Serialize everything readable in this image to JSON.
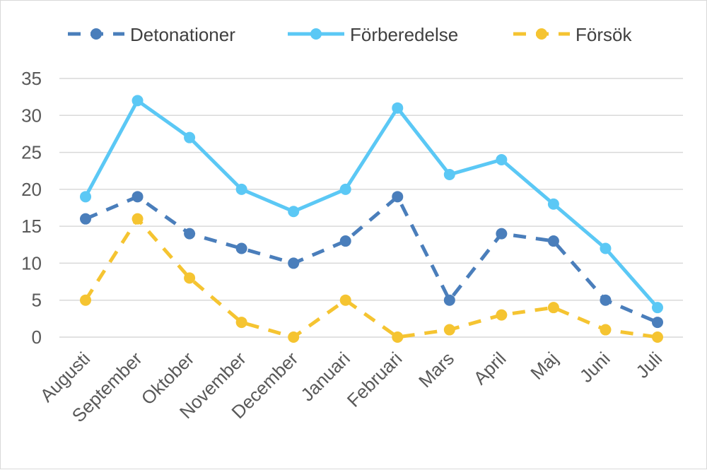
{
  "chart_data": {
    "type": "line",
    "title": "",
    "xlabel": "",
    "ylabel": "",
    "ylim": [
      0,
      35
    ],
    "yticks": [
      0,
      5,
      10,
      15,
      20,
      25,
      30,
      35
    ],
    "grid": true,
    "legend_position": "top",
    "categories": [
      "Augusti",
      "September",
      "Oktober",
      "November",
      "December",
      "Januari",
      "Februari",
      "Mars",
      "April",
      "Maj",
      "Juni",
      "Juli"
    ],
    "series": [
      {
        "name": "Detonationer",
        "color": "#4a7ebb",
        "dashed": true,
        "values": [
          16,
          19,
          14,
          12,
          10,
          13,
          19,
          5,
          14,
          13,
          5,
          2
        ]
      },
      {
        "name": "Förberedelse",
        "color": "#5bc8f5",
        "dashed": false,
        "values": [
          19,
          32,
          27,
          20,
          17,
          20,
          31,
          22,
          24,
          18,
          12,
          4
        ]
      },
      {
        "name": "Försök",
        "color": "#f5c431",
        "dashed": true,
        "values": [
          5,
          16,
          8,
          2,
          0,
          5,
          0,
          1,
          3,
          4,
          1,
          0
        ]
      }
    ]
  }
}
